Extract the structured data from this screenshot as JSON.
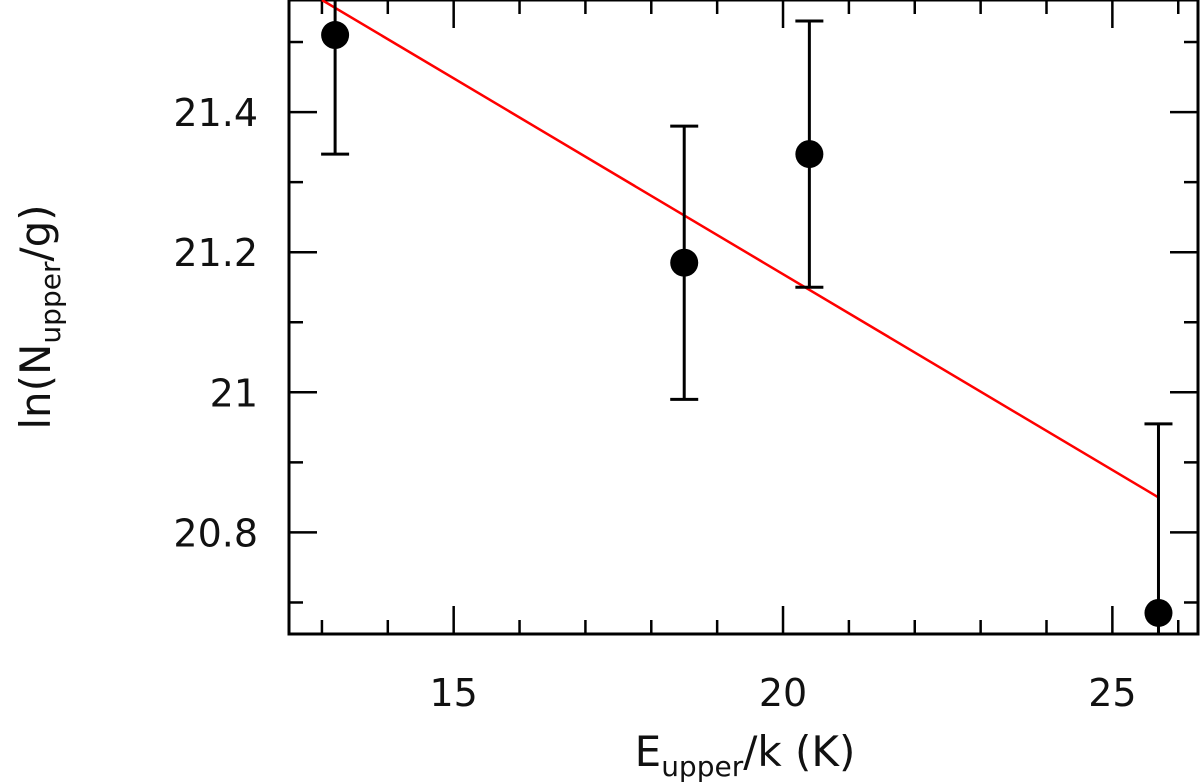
{
  "chart_data": {
    "type": "scatter",
    "xlabel": {
      "main": "E",
      "sub": "upper",
      "rest": "/k (K)"
    },
    "ylabel": {
      "main": "ln(N",
      "sub": "upper",
      "rest": "/g)"
    },
    "xlim": [
      12.5,
      26.3
    ],
    "ylim": [
      20.655,
      21.56
    ],
    "x_ticks_major": [
      15,
      20,
      25
    ],
    "x_tick_labels": [
      "15",
      "20",
      "25"
    ],
    "x_ticks_minor": [
      13,
      14,
      16,
      17,
      18,
      19,
      21,
      22,
      23,
      24,
      26
    ],
    "y_ticks_major": [
      20.8,
      21.0,
      21.2,
      21.4
    ],
    "y_tick_labels": [
      "20.8",
      "21",
      "21.2",
      "21.4"
    ],
    "y_ticks_minor": [
      20.7,
      20.9,
      21.1,
      21.3,
      21.5
    ],
    "points": [
      {
        "x": 13.2,
        "y": 21.51,
        "err_low": 21.34,
        "err_high": 21.56
      },
      {
        "x": 18.5,
        "y": 21.185,
        "err_low": 20.99,
        "err_high": 21.38
      },
      {
        "x": 20.4,
        "y": 21.34,
        "err_low": 21.15,
        "err_high": 21.53
      },
      {
        "x": 25.7,
        "y": 20.685,
        "err_low": 20.655,
        "err_high": 20.955
      }
    ],
    "fit_line": {
      "x": [
        13.0,
        25.7
      ],
      "y": [
        21.56,
        20.85
      ],
      "color": "#ff0000"
    },
    "marker_color": "#000000",
    "grid": false
  }
}
